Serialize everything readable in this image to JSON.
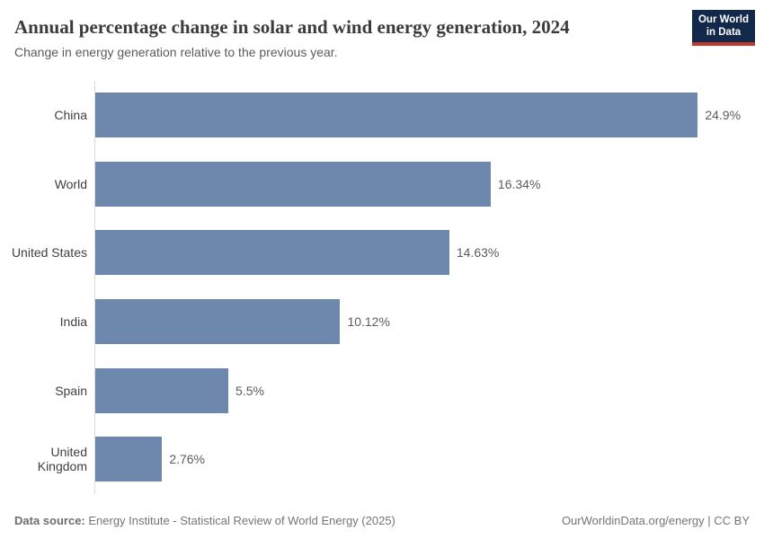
{
  "header": {
    "title": "Annual percentage change in solar and wind energy generation, 2024",
    "subtitle": "Change in energy generation relative to the previous year.",
    "logo": {
      "line1": "Our World",
      "line2": "in Data"
    }
  },
  "chart_data": {
    "type": "bar",
    "orientation": "horizontal",
    "title": "Annual percentage change in solar and wind energy generation, 2024",
    "categories": [
      "China",
      "World",
      "United States",
      "India",
      "Spain",
      "United Kingdom"
    ],
    "values": [
      24.9,
      16.34,
      14.63,
      10.12,
      5.5,
      2.76
    ],
    "value_labels": [
      "24.9%",
      "16.34%",
      "14.63%",
      "10.12%",
      "5.5%",
      "2.76%"
    ],
    "value_suffix": "%",
    "xlabel": "",
    "ylabel": "",
    "grid": false,
    "legend": false,
    "sorted": "descending",
    "bar_color": "#6d87ad"
  },
  "footer": {
    "source_label": "Data source:",
    "source_text": " Energy Institute - Statistical Review of World Energy (2025)",
    "credit": "OurWorldinData.org/energy | CC BY"
  },
  "colors": {
    "bar": "#6d87ad",
    "logo_background": "#12294b",
    "logo_underline": "#c0392b",
    "axis_line": "#dcdcdc",
    "title_text": "#3b3b3b",
    "subtitle_text": "#5b5b5b",
    "footer_text": "#757575"
  }
}
